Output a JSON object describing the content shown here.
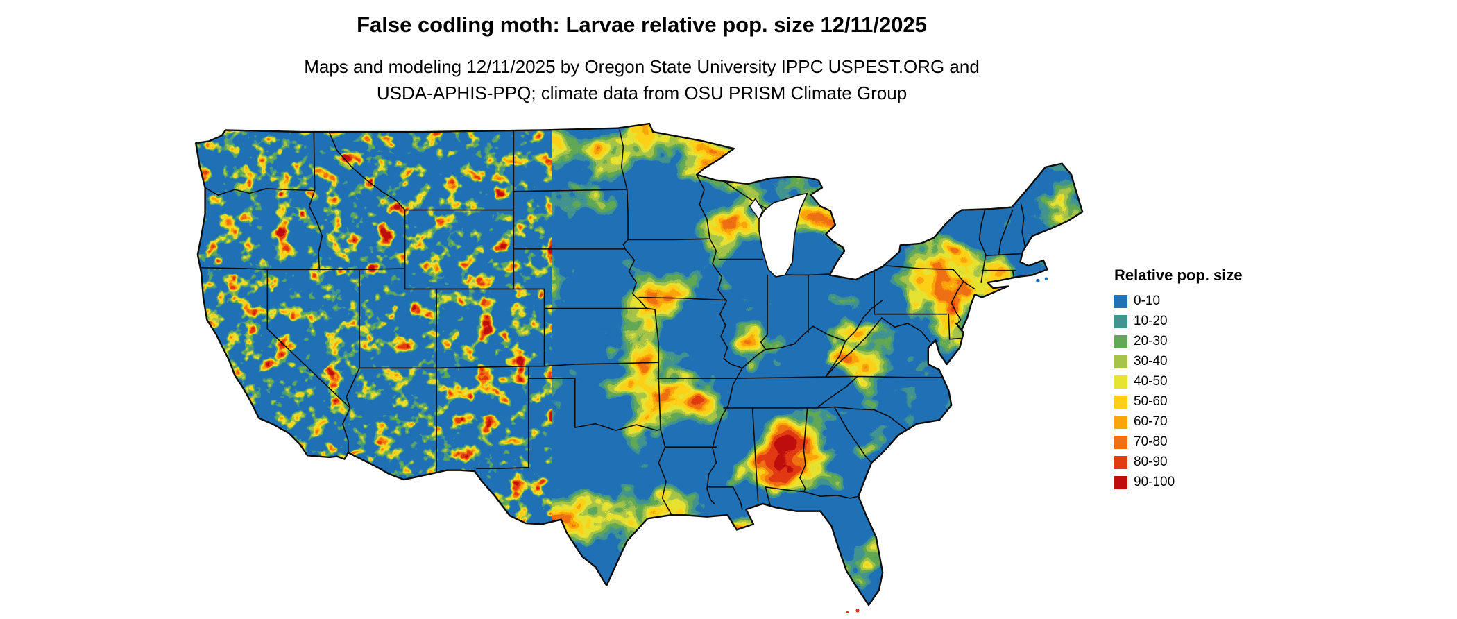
{
  "title": "False codling moth: Larvae relative pop. size 12/11/2025",
  "subtitle": {
    "line1": "Maps and modeling 12/11/2025 by Oregon State University IPPC USPEST.ORG and",
    "line2": "USDA-APHIS-PPQ; climate data from OSU PRISM Climate Group"
  },
  "legend": {
    "title": "Relative pop. size",
    "classes": [
      {
        "label": "0-10",
        "color": "#2171b5"
      },
      {
        "label": "10-20",
        "color": "#41948f"
      },
      {
        "label": "20-30",
        "color": "#62a856"
      },
      {
        "label": "30-40",
        "color": "#a6c34a"
      },
      {
        "label": "40-50",
        "color": "#e6e332"
      },
      {
        "label": "50-60",
        "color": "#fdd017"
      },
      {
        "label": "60-70",
        "color": "#fca50a"
      },
      {
        "label": "70-80",
        "color": "#f07113"
      },
      {
        "label": "80-90",
        "color": "#e23b14"
      },
      {
        "label": "90-100",
        "color": "#bf0d0d"
      }
    ]
  }
}
